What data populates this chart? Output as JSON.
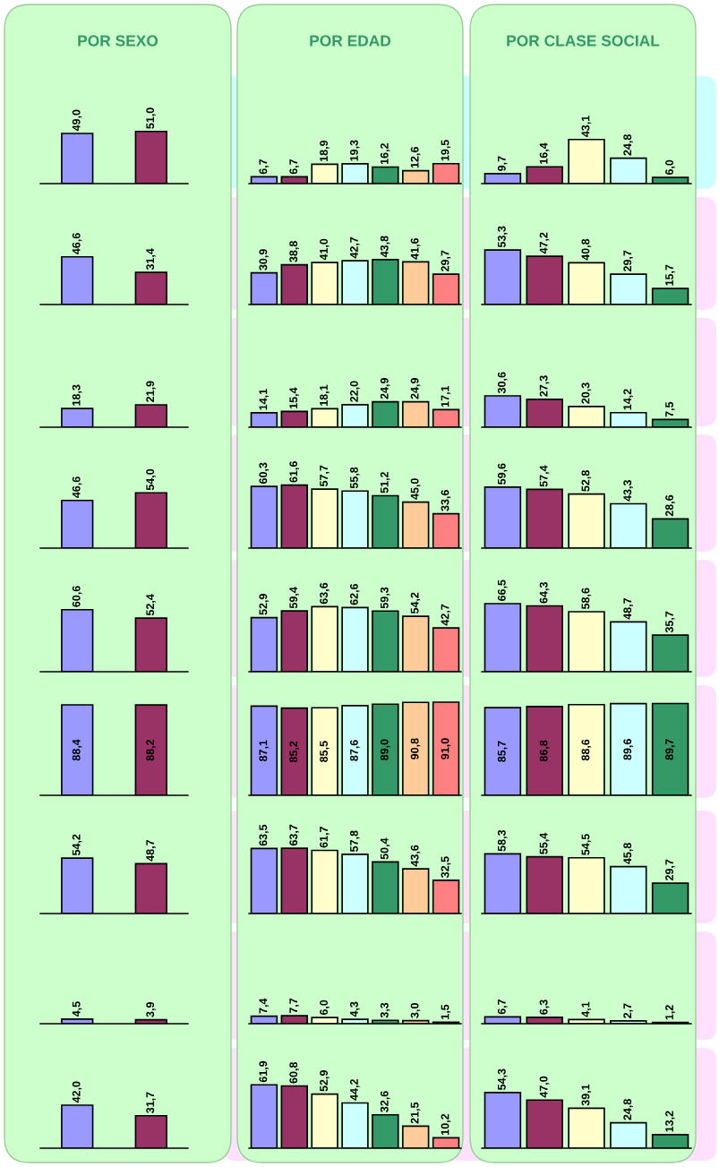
{
  "chart_data": [
    {
      "type": "bar",
      "title": "POR SEXO",
      "categories": [
        null,
        null
      ],
      "values": [
        49.0,
        51.0
      ],
      "value_labels": [
        "49,0",
        "51,0"
      ],
      "colors": [
        "#9999ff",
        "#993366"
      ]
    },
    {
      "type": "bar",
      "title": "POR EDAD",
      "categories": [
        null,
        null,
        null,
        null,
        null,
        null,
        null
      ],
      "values": [
        6.7,
        6.7,
        18.9,
        19.3,
        16.2,
        12.6,
        19.5
      ],
      "value_labels": [
        "6,7",
        "6,7",
        "18,9",
        "19,3",
        "16,2",
        "12,6",
        "19,5"
      ],
      "colors": [
        "#9999ff",
        "#993366",
        "#ffffcc",
        "#ccffff",
        "#339966",
        "#ffcc99",
        "#ff8080"
      ]
    },
    {
      "type": "bar",
      "title": "POR CLASE SOCIAL",
      "categories": [
        null,
        null,
        null,
        null,
        null
      ],
      "values": [
        9.7,
        16.4,
        43.1,
        24.8,
        6.0
      ],
      "value_labels": [
        "9,7",
        "16,4",
        "43,1",
        "24,8",
        "6,0"
      ],
      "colors": [
        "#9999ff",
        "#993366",
        "#ffffcc",
        "#ccffff",
        "#339966"
      ]
    },
    {
      "type": "bar",
      "categories": [
        null,
        null
      ],
      "values": [
        46.6,
        31.4
      ],
      "value_labels": [
        "46,6",
        "31,4"
      ],
      "colors": [
        "#9999ff",
        "#993366"
      ]
    },
    {
      "type": "bar",
      "categories": [
        null,
        null,
        null,
        null,
        null,
        null,
        null
      ],
      "values": [
        30.9,
        38.8,
        41.0,
        42.7,
        43.8,
        41.6,
        29.7
      ],
      "value_labels": [
        "30,9",
        "38,8",
        "41,0",
        "42,7",
        "43,8",
        "41,6",
        "29,7"
      ],
      "colors": [
        "#9999ff",
        "#993366",
        "#ffffcc",
        "#ccffff",
        "#339966",
        "#ffcc99",
        "#ff8080"
      ]
    },
    {
      "type": "bar",
      "categories": [
        null,
        null,
        null,
        null,
        null
      ],
      "values": [
        53.3,
        47.2,
        40.8,
        29.7,
        15.7
      ],
      "value_labels": [
        "53,3",
        "47,2",
        "40,8",
        "29,7",
        "15,7"
      ],
      "colors": [
        "#9999ff",
        "#993366",
        "#ffffcc",
        "#ccffff",
        "#339966"
      ]
    },
    {
      "type": "bar",
      "categories": [
        null,
        null
      ],
      "values": [
        18.3,
        21.9
      ],
      "value_labels": [
        "18,3",
        "21,9"
      ],
      "colors": [
        "#9999ff",
        "#993366"
      ]
    },
    {
      "type": "bar",
      "categories": [
        null,
        null,
        null,
        null,
        null,
        null,
        null
      ],
      "values": [
        14.1,
        15.4,
        18.1,
        22.0,
        24.9,
        24.9,
        17.1
      ],
      "value_labels": [
        "14,1",
        "15,4",
        "18,1",
        "22,0",
        "24,9",
        "24,9",
        "17,1"
      ],
      "colors": [
        "#9999ff",
        "#993366",
        "#ffffcc",
        "#ccffff",
        "#339966",
        "#ffcc99",
        "#ff8080"
      ]
    },
    {
      "type": "bar",
      "categories": [
        null,
        null,
        null,
        null,
        null
      ],
      "values": [
        30.6,
        27.3,
        20.3,
        14.2,
        7.5
      ],
      "value_labels": [
        "30,6",
        "27,3",
        "20,3",
        "14,2",
        "7,5"
      ],
      "colors": [
        "#9999ff",
        "#993366",
        "#ffffcc",
        "#ccffff",
        "#339966"
      ]
    },
    {
      "type": "bar",
      "categories": [
        null,
        null
      ],
      "values": [
        46.6,
        54.0
      ],
      "value_labels": [
        "46,6",
        "54,0"
      ],
      "colors": [
        "#9999ff",
        "#993366"
      ]
    },
    {
      "type": "bar",
      "categories": [
        null,
        null,
        null,
        null,
        null,
        null,
        null
      ],
      "values": [
        60.3,
        61.6,
        57.7,
        55.8,
        51.2,
        45.0,
        33.6
      ],
      "value_labels": [
        "60,3",
        "61,6",
        "57,7",
        "55,8",
        "51,2",
        "45,0",
        "33,6"
      ],
      "colors": [
        "#9999ff",
        "#993366",
        "#ffffcc",
        "#ccffff",
        "#339966",
        "#ffcc99",
        "#ff8080"
      ]
    },
    {
      "type": "bar",
      "categories": [
        null,
        null,
        null,
        null,
        null
      ],
      "values": [
        59.6,
        57.4,
        52.8,
        43.3,
        28.6
      ],
      "value_labels": [
        "59,6",
        "57,4",
        "52,8",
        "43,3",
        "28,6"
      ],
      "colors": [
        "#9999ff",
        "#993366",
        "#ffffcc",
        "#ccffff",
        "#339966"
      ]
    },
    {
      "type": "bar",
      "categories": [
        null,
        null
      ],
      "values": [
        60.6,
        52.4
      ],
      "value_labels": [
        "60,6",
        "52,4"
      ],
      "colors": [
        "#9999ff",
        "#993366"
      ]
    },
    {
      "type": "bar",
      "categories": [
        null,
        null,
        null,
        null,
        null,
        null,
        null
      ],
      "values": [
        52.9,
        59.4,
        63.6,
        62.6,
        59.3,
        54.2,
        42.7
      ],
      "value_labels": [
        "52,9",
        "59,4",
        "63,6",
        "62,6",
        "59,3",
        "54,2",
        "42,7"
      ],
      "colors": [
        "#9999ff",
        "#993366",
        "#ffffcc",
        "#ccffff",
        "#339966",
        "#ffcc99",
        "#ff8080"
      ]
    },
    {
      "type": "bar",
      "categories": [
        null,
        null,
        null,
        null,
        null
      ],
      "values": [
        66.5,
        64.3,
        58.6,
        48.7,
        35.7
      ],
      "value_labels": [
        "66,5",
        "64,3",
        "58,6",
        "48,7",
        "35,7"
      ],
      "colors": [
        "#9999ff",
        "#993366",
        "#ffffcc",
        "#ccffff",
        "#339966"
      ]
    },
    {
      "type": "bar",
      "categories": [
        null,
        null
      ],
      "values": [
        88.4,
        88.2
      ],
      "value_labels": [
        "88,4",
        "88,2"
      ],
      "colors": [
        "#9999ff",
        "#993366"
      ]
    },
    {
      "type": "bar",
      "categories": [
        null,
        null,
        null,
        null,
        null,
        null,
        null
      ],
      "values": [
        87.1,
        85.2,
        85.5,
        87.6,
        89.0,
        90.8,
        91.0
      ],
      "value_labels": [
        "87,1",
        "85,2",
        "85,5",
        "87,6",
        "89,0",
        "90,8",
        "91,0"
      ],
      "colors": [
        "#9999ff",
        "#993366",
        "#ffffcc",
        "#ccffff",
        "#339966",
        "#ffcc99",
        "#ff8080"
      ]
    },
    {
      "type": "bar",
      "categories": [
        null,
        null,
        null,
        null,
        null
      ],
      "values": [
        85.7,
        86.8,
        88.6,
        89.6,
        89.7
      ],
      "value_labels": [
        "85,7",
        "86,8",
        "88,6",
        "89,6",
        "89,7"
      ],
      "colors": [
        "#9999ff",
        "#993366",
        "#ffffcc",
        "#ccffff",
        "#339966"
      ]
    },
    {
      "type": "bar",
      "categories": [
        null,
        null
      ],
      "values": [
        54.2,
        48.7
      ],
      "value_labels": [
        "54,2",
        "48,7"
      ],
      "colors": [
        "#9999ff",
        "#993366"
      ]
    },
    {
      "type": "bar",
      "categories": [
        null,
        null,
        null,
        null,
        null,
        null,
        null
      ],
      "values": [
        63.5,
        63.7,
        61.7,
        57.8,
        50.4,
        43.6,
        32.5
      ],
      "value_labels": [
        "63,5",
        "63,7",
        "61,7",
        "57,8",
        "50,4",
        "43,6",
        "32,5"
      ],
      "colors": [
        "#9999ff",
        "#993366",
        "#ffffcc",
        "#ccffff",
        "#339966",
        "#ffcc99",
        "#ff8080"
      ]
    },
    {
      "type": "bar",
      "categories": [
        null,
        null,
        null,
        null,
        null
      ],
      "values": [
        58.3,
        55.4,
        54.5,
        45.8,
        29.7
      ],
      "value_labels": [
        "58,3",
        "55,4",
        "54,5",
        "45,8",
        "29,7"
      ],
      "colors": [
        "#9999ff",
        "#993366",
        "#ffffcc",
        "#ccffff",
        "#339966"
      ]
    },
    {
      "type": "bar",
      "categories": [
        null,
        null
      ],
      "values": [
        4.5,
        3.9
      ],
      "value_labels": [
        "4,5",
        "3,9"
      ],
      "colors": [
        "#9999ff",
        "#993366"
      ]
    },
    {
      "type": "bar",
      "categories": [
        null,
        null,
        null,
        null,
        null,
        null,
        null
      ],
      "values": [
        7.4,
        7.7,
        6.0,
        4.3,
        3.3,
        3.0,
        1.5
      ],
      "value_labels": [
        "7,4",
        "7,7",
        "6,0",
        "4,3",
        "3,3",
        "3,0",
        "1,5"
      ],
      "colors": [
        "#9999ff",
        "#993366",
        "#ffffcc",
        "#ccffff",
        "#339966",
        "#ffcc99",
        "#ff8080"
      ]
    },
    {
      "type": "bar",
      "categories": [
        null,
        null,
        null,
        null,
        null
      ],
      "values": [
        6.7,
        6.3,
        4.1,
        2.7,
        1.2
      ],
      "value_labels": [
        "6,7",
        "6,3",
        "4,1",
        "2,7",
        "1,2"
      ],
      "colors": [
        "#9999ff",
        "#993366",
        "#ffffcc",
        "#ccffff",
        "#339966"
      ]
    },
    {
      "type": "bar",
      "categories": [
        null,
        null
      ],
      "values": [
        42.0,
        31.7
      ],
      "value_labels": [
        "42,0",
        "31,7"
      ],
      "colors": [
        "#9999ff",
        "#993366"
      ]
    },
    {
      "type": "bar",
      "categories": [
        null,
        null,
        null,
        null,
        null,
        null,
        null
      ],
      "values": [
        61.9,
        60.8,
        52.9,
        44.2,
        32.6,
        21.5,
        10.2
      ],
      "value_labels": [
        "61,9",
        "60,8",
        "52,9",
        "44,2",
        "32,6",
        "21,5",
        "10,2"
      ],
      "colors": [
        "#9999ff",
        "#993366",
        "#ffffcc",
        "#ccffff",
        "#339966",
        "#ffcc99",
        "#ff8080"
      ]
    },
    {
      "type": "bar",
      "categories": [
        null,
        null,
        null,
        null,
        null
      ],
      "values": [
        54.3,
        47.0,
        39.1,
        24.8,
        13.2
      ],
      "value_labels": [
        "54,3",
        "47,0",
        "39,1",
        "24,8",
        "13,2"
      ],
      "colors": [
        "#9999ff",
        "#993366",
        "#ffffcc",
        "#ccffff",
        "#339966"
      ]
    }
  ]
}
